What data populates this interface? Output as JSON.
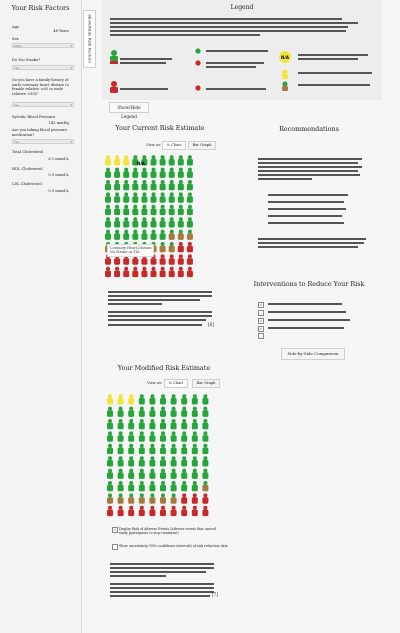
{
  "sidebar": {
    "title": "Your Risk Factors",
    "age_label": "Age",
    "age_value": "48 Years",
    "sex_label": "Sex",
    "sex_value": "Male",
    "smoke_label": "Do You Smoke?",
    "smoke_value": "Yes",
    "family_label": "Do you have a family history of early coronary heart disease (a female relative <65 or male relative <55)?",
    "family_value": "Yes",
    "sbp_label": "Systolic Blood Pressure",
    "sbp_value": "143 mmHg",
    "bpmed_label": "Are you taking blood pressure medication?",
    "bpmed_value": "Yes",
    "tc_label": "Total Cholesterol",
    "tc_value": "6.1 mmol/L",
    "hdl_label": "HDL Cholesterol",
    "hdl_value": "0.9 mmol/L",
    "ldl_label": "LDL Cholesterol",
    "ldl_value": "0.9 mmol/L"
  },
  "toggle_tab_label": "Show/Hide Risk Factors",
  "legend": {
    "title": "Legend",
    "na_label": "N/A",
    "toggle_label": "Show/Hide Legend"
  },
  "current": {
    "title": "Your Current Risk Estimate",
    "view_as": "View as:",
    "chart_btn": "% Chart",
    "bar_btn": "Bar Graph",
    "na_label": "N/A",
    "tooltip_line1": "Coronary Heart Disease",
    "tooltip_line2": "No Stroke or TIA",
    "footnote": "[6]"
  },
  "recommendations": {
    "title": "Recommendations"
  },
  "interventions": {
    "title": "Interventions to Reduce Your Risk",
    "compare_btn": "Side-by-Side Comparison"
  },
  "modified": {
    "title": "Your Modified Risk Estimate",
    "view_as": "View as:",
    "chart_btn": "% Chart",
    "bar_btn": "Bar Graph",
    "cb1_label": "Display Risk of Adverse Events (Adverse events that caused study participants to stop treatment)",
    "cb2_label": "Show uncertainty (95% confidence intervals) of risk reduction data",
    "footnote": "[7]"
  },
  "colors": {
    "green": "#27a53a",
    "red": "#c8282a",
    "yellow": "#f2e53a",
    "brown": "#a77a3a"
  },
  "people_grid": {
    "current": {
      "columns": 10,
      "rows": 10,
      "yellow": 3,
      "green": 64,
      "mixed": 11,
      "red": 22
    },
    "modified": {
      "columns": 10,
      "rows": 10,
      "yellow": 3,
      "green": 76,
      "mixed": 8,
      "red": 13
    }
  }
}
